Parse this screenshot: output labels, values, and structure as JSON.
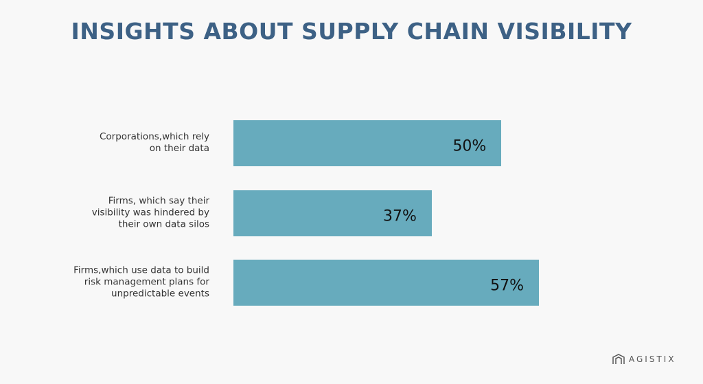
{
  "chart_data": {
    "type": "bar",
    "orientation": "horizontal",
    "title": "INSIGHTS ABOUT SUPPLY CHAIN VISIBILITY",
    "categories": [
      "Corporations,which rely\non their data",
      "Firms, which say their\nvisibility was hindered by\ntheir own data silos",
      "Firms,which use data to build\nrisk management plans for\nunpredictable events"
    ],
    "values": [
      50,
      37,
      57
    ],
    "value_labels": [
      "50%",
      "37%",
      "57%"
    ],
    "color": "#67abbd"
  },
  "brand": "AGISTIX"
}
